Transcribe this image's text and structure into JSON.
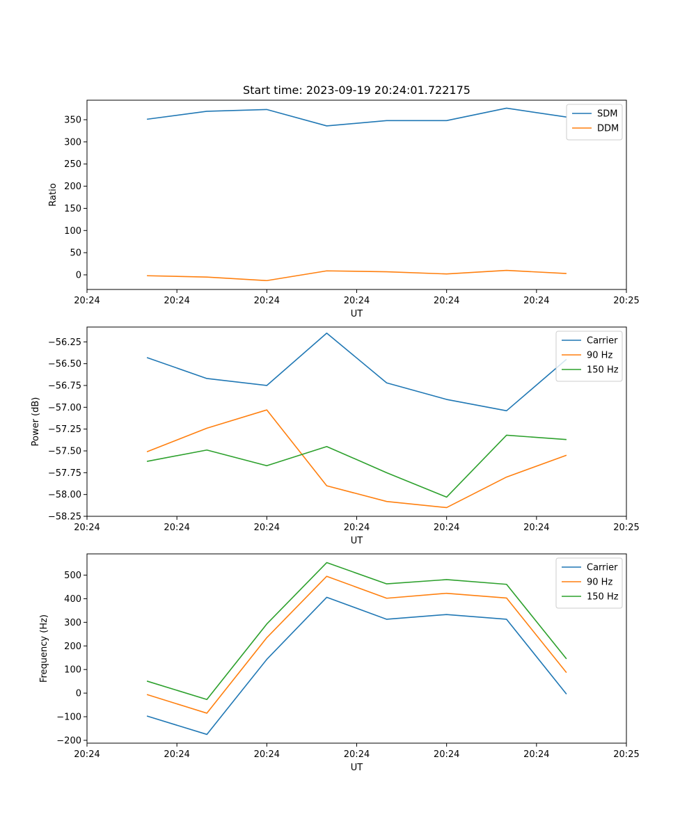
{
  "figure_title": "Start time: 2023-09-19 20:24:01.722175",
  "colors": {
    "blue": "#1f77b4",
    "orange": "#ff7f0e",
    "green": "#2ca02c"
  },
  "chart_data": [
    {
      "type": "line",
      "title": "Start time: 2023-09-19 20:24:01.722175",
      "xlabel": "UT",
      "ylabel": "Ratio",
      "x_index": [
        1,
        2,
        3,
        4,
        5,
        6,
        7,
        8
      ],
      "xlim": [
        0,
        9
      ],
      "x_ticks": [
        0,
        1.5,
        3,
        4.5,
        6,
        7.5,
        9
      ],
      "x_tick_labels": [
        "20:24",
        "20:24",
        "20:24",
        "20:24",
        "20:24",
        "20:24",
        "20:25"
      ],
      "ylim": [
        -33,
        394
      ],
      "y_ticks": [
        0,
        50,
        100,
        150,
        200,
        250,
        300,
        350
      ],
      "y_tick_labels": [
        "0",
        "50",
        "100",
        "150",
        "200",
        "250",
        "300",
        "350"
      ],
      "legend_position": "upper-right",
      "series": [
        {
          "name": "SDM",
          "color": "#1f77b4",
          "values": [
            351,
            369,
            373,
            336,
            348,
            348,
            376,
            356
          ]
        },
        {
          "name": "DDM",
          "color": "#ff7f0e",
          "values": [
            -2,
            -5,
            -13,
            9,
            7,
            2,
            10,
            3
          ]
        }
      ]
    },
    {
      "type": "line",
      "title": "",
      "xlabel": "UT",
      "ylabel": "Power (dB)",
      "x_index": [
        1,
        2,
        3,
        4,
        5,
        6,
        7,
        8
      ],
      "xlim": [
        0,
        9
      ],
      "x_ticks": [
        0,
        1.5,
        3,
        4.5,
        6,
        7.5,
        9
      ],
      "x_tick_labels": [
        "20:24",
        "20:24",
        "20:24",
        "20:24",
        "20:24",
        "20:24",
        "20:25"
      ],
      "ylim": [
        -58.25,
        -56.08
      ],
      "y_ticks": [
        -58.25,
        -58.0,
        -57.75,
        -57.5,
        -57.25,
        -57.0,
        -56.75,
        -56.5,
        -56.25
      ],
      "y_tick_labels": [
        "−58.25",
        "−58.00",
        "−57.75",
        "−57.50",
        "−57.25",
        "−57.00",
        "−56.75",
        "−56.50",
        "−56.25"
      ],
      "legend_position": "upper-right",
      "series": [
        {
          "name": "Carrier",
          "color": "#1f77b4",
          "values": [
            -56.43,
            -56.67,
            -56.75,
            -56.15,
            -56.72,
            -56.91,
            -57.04,
            -56.45
          ]
        },
        {
          "name": "90 Hz",
          "color": "#ff7f0e",
          "values": [
            -57.51,
            -57.24,
            -57.03,
            -57.9,
            -58.08,
            -58.15,
            -57.8,
            -57.55
          ]
        },
        {
          "name": "150 Hz",
          "color": "#2ca02c",
          "values": [
            -57.62,
            -57.49,
            -57.67,
            -57.45,
            -57.75,
            -58.03,
            -57.32,
            -57.37
          ]
        }
      ]
    },
    {
      "type": "line",
      "title": "",
      "xlabel": "UT",
      "ylabel": "Frequency (Hz)",
      "x_index": [
        1,
        2,
        3,
        4,
        5,
        6,
        7,
        8
      ],
      "xlim": [
        0,
        9
      ],
      "x_ticks": [
        0,
        1.5,
        3,
        4.5,
        6,
        7.5,
        9
      ],
      "x_tick_labels": [
        "20:24",
        "20:24",
        "20:24",
        "20:24",
        "20:24",
        "20:24",
        "20:25"
      ],
      "ylim": [
        -212,
        590
      ],
      "y_ticks": [
        -200,
        -100,
        0,
        100,
        200,
        300,
        400,
        500
      ],
      "y_tick_labels": [
        "−200",
        "−100",
        "0",
        "100",
        "200",
        "300",
        "400",
        "500"
      ],
      "legend_position": "upper-right",
      "series": [
        {
          "name": "Carrier",
          "color": "#1f77b4",
          "values": [
            -97,
            -175,
            143,
            406,
            313,
            333,
            313,
            -4
          ]
        },
        {
          "name": "90 Hz",
          "color": "#ff7f0e",
          "values": [
            -6,
            -85,
            235,
            495,
            402,
            423,
            403,
            87
          ]
        },
        {
          "name": "150 Hz",
          "color": "#2ca02c",
          "values": [
            51,
            -27,
            293,
            553,
            463,
            481,
            461,
            145
          ]
        }
      ]
    }
  ]
}
